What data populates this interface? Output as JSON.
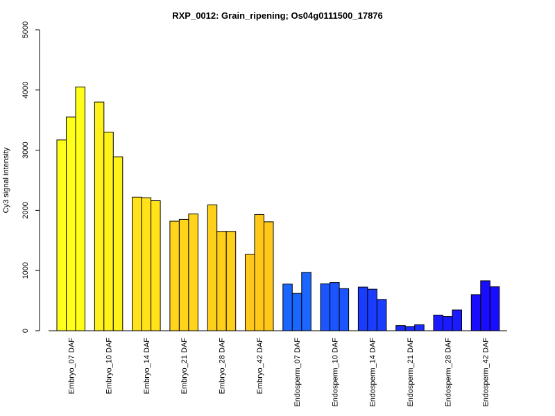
{
  "chart_data": {
    "type": "bar",
    "title": "RXP_0012: Grain_ripening; Os04g0111500_17876",
    "xlabel": "",
    "ylabel": "Cy3 signal intensity",
    "ylim": [
      0,
      5000
    ],
    "yticks": [
      0,
      1000,
      2000,
      3000,
      4000,
      5000
    ],
    "grid": false,
    "categories": [
      "Embryo_07 DAF",
      "Embryo_10 DAF",
      "Embryo_14 DAF",
      "Embryo_21 DAF",
      "Embryo_28 DAF",
      "Embryo_42 DAF",
      "Endosperm_07 DAF",
      "Endosperm_10 DAF",
      "Endosperm_14 DAF",
      "Endosperm_21 DAF",
      "Endosperm_28 DAF",
      "Endosperm_42 DAF"
    ],
    "group_colors": [
      "#ffff1a",
      "#fff21a",
      "#ffe21a",
      "#ffd41a",
      "#ffd01a",
      "#ffc81a",
      "#1a66ff",
      "#1a55ff",
      "#1a3cff",
      "#1a2cff",
      "#1a1cff",
      "#1a0cff"
    ],
    "values": [
      [
        3170,
        3550,
        4050
      ],
      [
        3800,
        3300,
        2890
      ],
      [
        2220,
        2210,
        2160
      ],
      [
        1820,
        1850,
        1940
      ],
      [
        2090,
        1650,
        1650
      ],
      [
        1270,
        1930,
        1810
      ],
      [
        775,
        620,
        970
      ],
      [
        780,
        800,
        700
      ],
      [
        725,
        690,
        520
      ],
      [
        85,
        70,
        100
      ],
      [
        260,
        235,
        345
      ],
      [
        600,
        830,
        730
      ]
    ]
  }
}
